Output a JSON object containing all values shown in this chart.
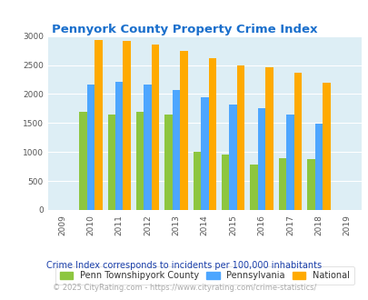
{
  "title": "Pennyork County Property Crime Index",
  "bar_years": [
    2010,
    2011,
    2012,
    2013,
    2014,
    2015,
    2016,
    2017,
    2018
  ],
  "penn_township": [
    1700,
    1650,
    1700,
    1650,
    1010,
    950,
    790,
    900,
    870
  ],
  "pennsylvania": [
    2170,
    2210,
    2160,
    2070,
    1950,
    1820,
    1750,
    1640,
    1490
  ],
  "national": [
    2930,
    2910,
    2860,
    2750,
    2610,
    2500,
    2460,
    2360,
    2190
  ],
  "color_penn_township": "#8dc63f",
  "color_pennsylvania": "#4da6ff",
  "color_national": "#ffaa00",
  "bg_color": "#ddeef5",
  "ylim": [
    0,
    3000
  ],
  "yticks": [
    0,
    500,
    1000,
    1500,
    2000,
    2500,
    3000
  ],
  "title_color": "#1a6fcc",
  "legend_label_penn": "Penn Townshipyork County",
  "legend_label_pa": "Pennsylvania",
  "legend_label_nat": "National",
  "footnote1": "Crime Index corresponds to incidents per 100,000 inhabitants",
  "footnote2": "© 2025 CityRating.com - https://www.cityrating.com/crime-statistics/",
  "footnote_color1": "#1a3faa",
  "footnote_color2": "#aaaaaa",
  "xtick_labels": [
    "2009",
    "2010",
    "2011",
    "2012",
    "2013",
    "2014",
    "2015",
    "2016",
    "2017",
    "2018",
    "2019"
  ]
}
